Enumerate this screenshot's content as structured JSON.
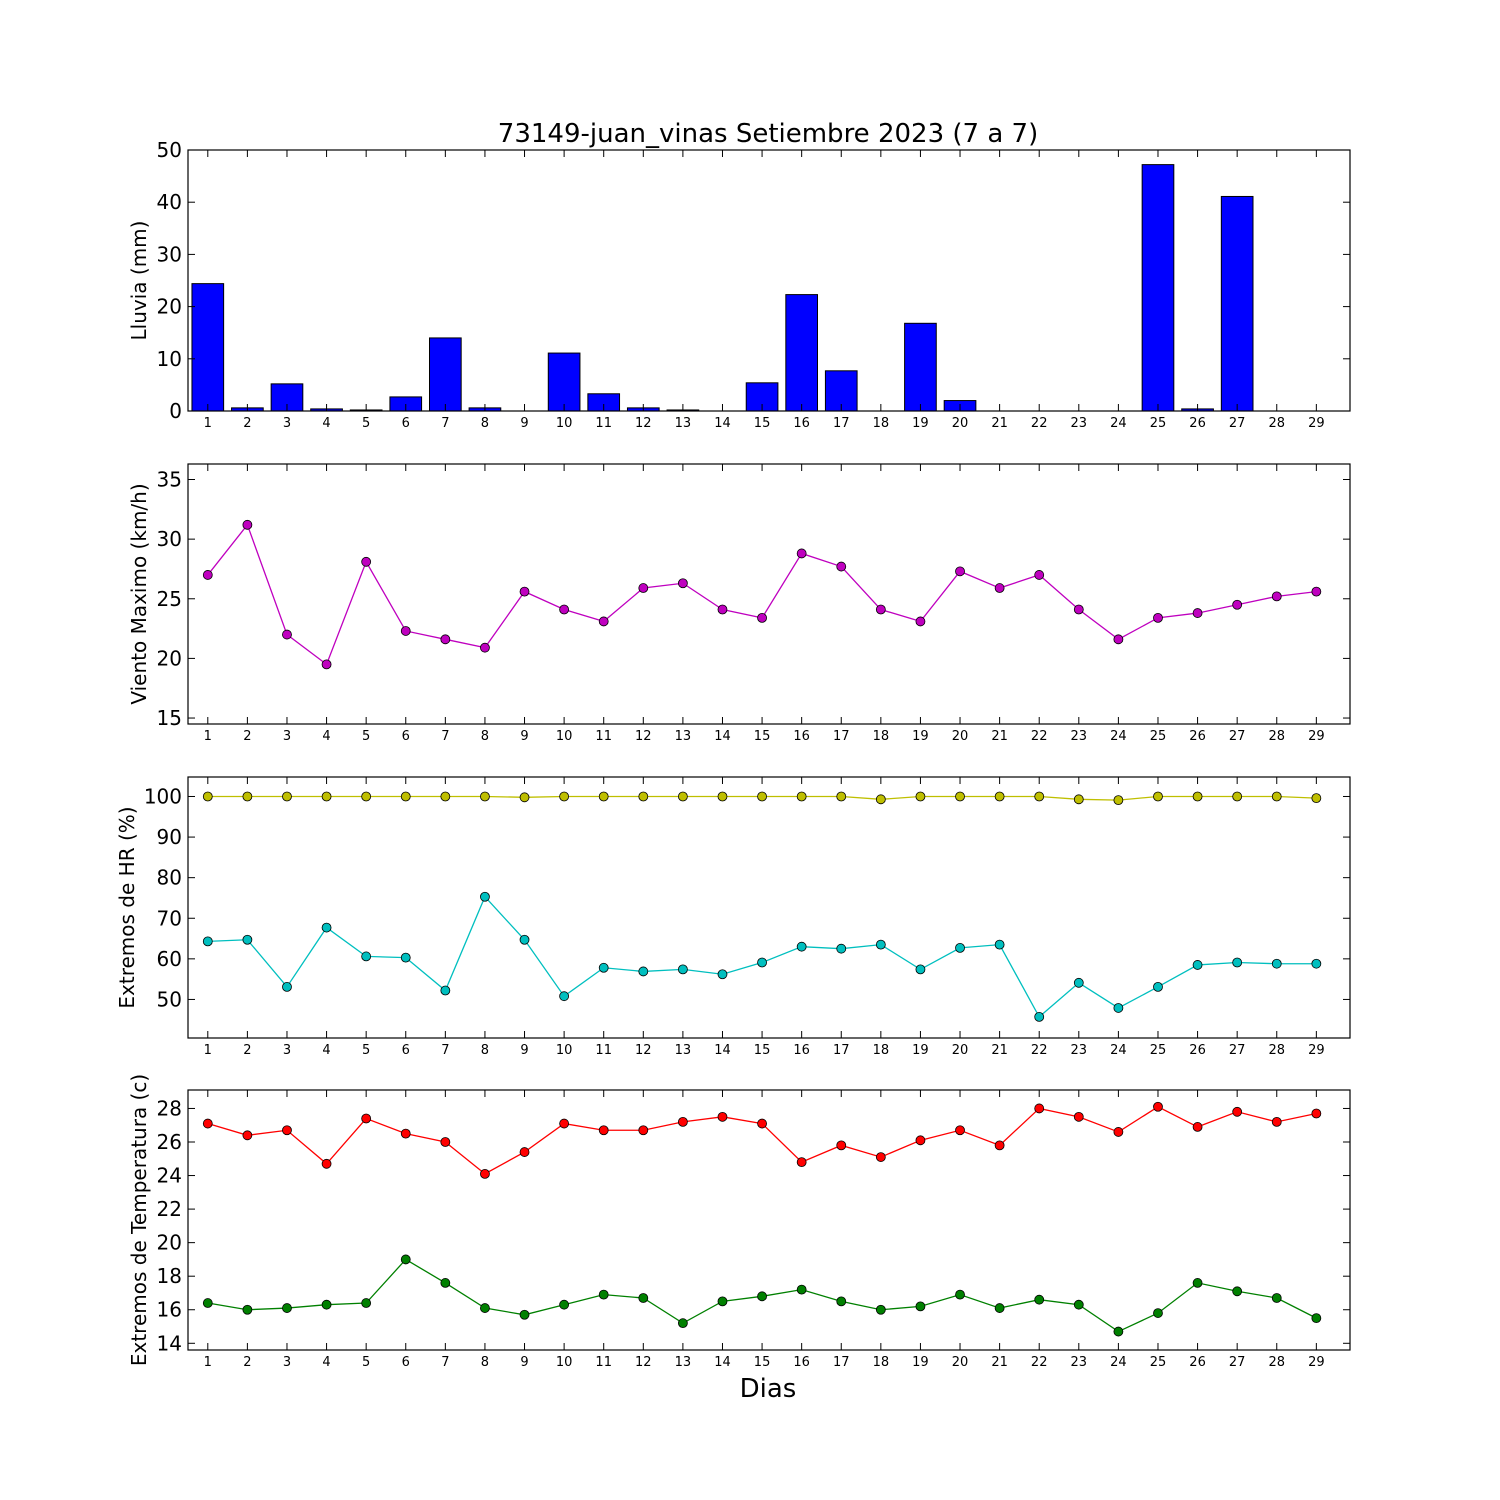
{
  "title": "73149-juan_vinas Setiembre 2023  (7 a 7)",
  "xlabel": "Dias",
  "chart_data": [
    {
      "type": "bar",
      "ylabel": "Lluvia (mm)",
      "ylim": [
        0,
        50
      ],
      "yticks": [
        0,
        10,
        20,
        30,
        40,
        50
      ],
      "x": [
        1,
        2,
        3,
        4,
        5,
        6,
        7,
        8,
        9,
        10,
        11,
        12,
        13,
        14,
        15,
        16,
        17,
        18,
        19,
        20,
        21,
        22,
        23,
        24,
        25,
        26,
        27,
        28,
        29
      ],
      "series": [
        {
          "color": "#0000ff",
          "values": [
            24.4,
            0.6,
            5.2,
            0.4,
            0.2,
            2.7,
            14.0,
            0.6,
            0.0,
            11.1,
            3.3,
            0.6,
            0.2,
            0.0,
            5.4,
            22.3,
            7.7,
            0.0,
            16.8,
            2.0,
            0.0,
            0.0,
            0.0,
            0.0,
            47.2,
            0.4,
            41.1,
            0.0,
            0.0
          ]
        }
      ]
    },
    {
      "type": "line",
      "ylabel": "Viento Maximo (km/h)",
      "ylim": [
        14.5,
        36.3
      ],
      "yticks": [
        15,
        20,
        25,
        30,
        35
      ],
      "x": [
        1,
        2,
        3,
        4,
        5,
        6,
        7,
        8,
        9,
        10,
        11,
        12,
        13,
        14,
        15,
        16,
        17,
        18,
        19,
        20,
        21,
        22,
        23,
        24,
        25,
        26,
        27,
        28,
        29
      ],
      "series": [
        {
          "color": "#bf00bf",
          "values": [
            27.0,
            31.2,
            22.0,
            19.5,
            28.1,
            22.3,
            21.6,
            20.9,
            25.6,
            24.1,
            23.1,
            25.9,
            26.3,
            24.1,
            23.4,
            28.8,
            27.7,
            24.1,
            23.1,
            27.3,
            25.9,
            27.0,
            24.1,
            21.6,
            23.4,
            23.8,
            24.5,
            25.2,
            25.6
          ]
        }
      ]
    },
    {
      "type": "line",
      "ylabel": "Extremos de HR (%)",
      "ylim": [
        40.5,
        104.8
      ],
      "yticks": [
        50,
        60,
        70,
        80,
        90,
        100
      ],
      "x": [
        1,
        2,
        3,
        4,
        5,
        6,
        7,
        8,
        9,
        10,
        11,
        12,
        13,
        14,
        15,
        16,
        17,
        18,
        19,
        20,
        21,
        22,
        23,
        24,
        25,
        26,
        27,
        28,
        29
      ],
      "series": [
        {
          "color": "#bfbf00",
          "values": [
            100,
            100,
            100,
            100,
            100,
            100,
            100,
            100,
            99.8,
            100,
            100,
            100,
            100,
            100,
            100,
            100,
            100,
            99.3,
            100,
            100,
            100,
            100,
            99.3,
            99.1,
            100,
            100,
            100,
            100,
            99.6
          ]
        },
        {
          "color": "#00bfbf",
          "values": [
            64.3,
            64.7,
            53.1,
            67.7,
            60.6,
            60.3,
            52.2,
            75.3,
            64.7,
            50.8,
            57.8,
            56.9,
            57.4,
            56.2,
            59.1,
            63.0,
            62.5,
            63.5,
            57.4,
            62.7,
            63.5,
            45.7,
            54.1,
            47.9,
            53.1,
            58.5,
            59.1,
            58.8,
            58.8
          ]
        }
      ]
    },
    {
      "type": "line",
      "ylabel": "Extremos de Temperatura (c)",
      "ylim": [
        13.6,
        29.1
      ],
      "yticks": [
        14,
        16,
        18,
        20,
        22,
        24,
        26,
        28
      ],
      "x": [
        1,
        2,
        3,
        4,
        5,
        6,
        7,
        8,
        9,
        10,
        11,
        12,
        13,
        14,
        15,
        16,
        17,
        18,
        19,
        20,
        21,
        22,
        23,
        24,
        25,
        26,
        27,
        28,
        29
      ],
      "series": [
        {
          "color": "#ff0000",
          "values": [
            27.1,
            26.4,
            26.7,
            24.7,
            27.4,
            26.5,
            26.0,
            24.1,
            25.4,
            27.1,
            26.7,
            26.7,
            27.2,
            27.5,
            27.1,
            24.8,
            25.8,
            25.1,
            26.1,
            26.7,
            25.8,
            28.0,
            27.5,
            26.6,
            28.1,
            26.9,
            27.8,
            27.2,
            27.7
          ]
        },
        {
          "color": "#008000",
          "values": [
            16.4,
            16.0,
            16.1,
            16.3,
            16.4,
            19.0,
            17.6,
            16.1,
            15.7,
            16.3,
            16.9,
            16.7,
            15.2,
            16.5,
            16.8,
            17.2,
            16.5,
            16.0,
            16.2,
            16.9,
            16.1,
            16.6,
            16.3,
            14.7,
            15.8,
            17.6,
            17.1,
            16.7,
            15.5
          ]
        }
      ]
    }
  ]
}
